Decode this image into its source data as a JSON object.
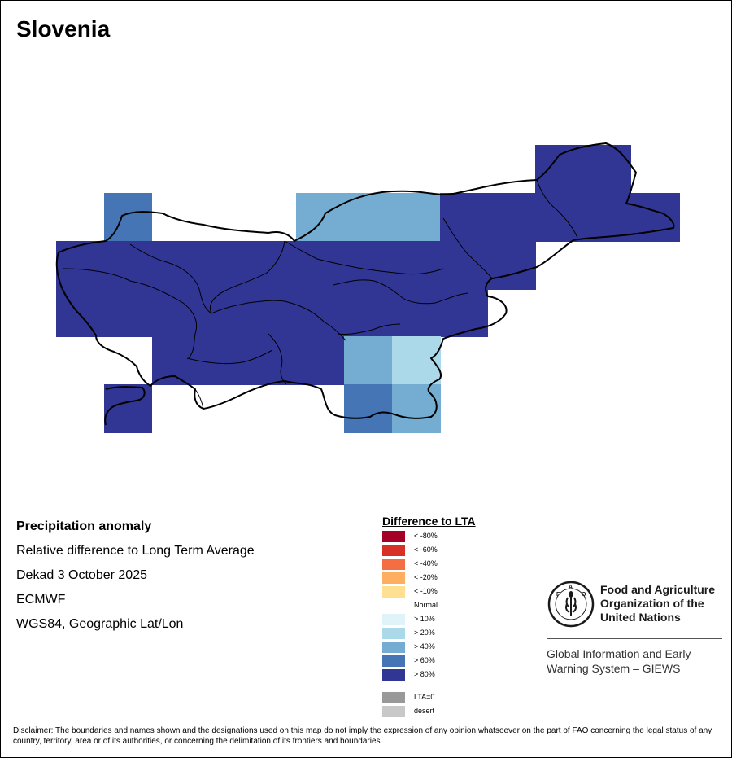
{
  "title": "Slovenia",
  "info": {
    "heading": "Precipitation anomaly",
    "line1": "Relative difference to Long Term Average",
    "line2": "Dekad 3 October 2025",
    "line3": "ECMWF",
    "line4": "WGS84, Geographic Lat/Lon"
  },
  "legend": {
    "title": "Difference to LTA",
    "items": [
      {
        "label": "< -80%",
        "color": "#a50026"
      },
      {
        "label": "< -60%",
        "color": "#d73027"
      },
      {
        "label": "< -40%",
        "color": "#f46d43"
      },
      {
        "label": "< -20%",
        "color": "#fdae61"
      },
      {
        "label": "< -10%",
        "color": "#fee090"
      },
      {
        "label": "Normal",
        "color": "#ffffff"
      },
      {
        "label": "> 10%",
        "color": "#e0f3f8"
      },
      {
        "label": "> 20%",
        "color": "#abd9e9"
      },
      {
        "label": "> 40%",
        "color": "#74add1"
      },
      {
        "label": "> 60%",
        "color": "#4575b4"
      },
      {
        "label": "> 80%",
        "color": "#313695"
      },
      {
        "label": "LTA=0",
        "color": "#999999"
      },
      {
        "label": "desert",
        "color": "#c8c8c8"
      }
    ]
  },
  "fao": {
    "name_line1": "Food and Agriculture",
    "name_line2": "Organization of the",
    "name_line3": "United Nations",
    "logo_text": "FAO FIAT PANIS",
    "giews_line1": "Global Information and Early",
    "giews_line2": "Warning System – GIEWS"
  },
  "disclaimer": "Disclaimer: The boundaries and names shown and the designations used on this map do not imply the expression of any opinion whatsoever on the part of FAO concerning the legal status of any country, territory, area or of its authorities, or concerning the delimitation of its frontiers and boundaries."
}
